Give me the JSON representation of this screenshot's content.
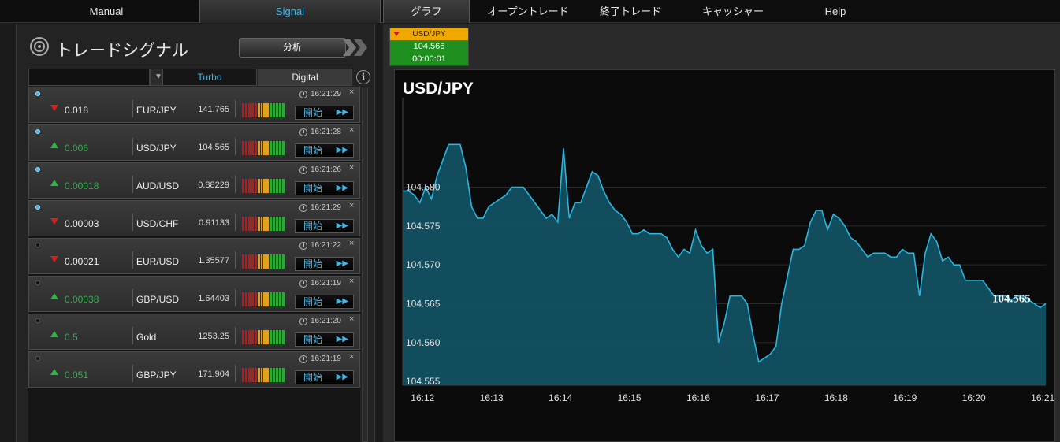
{
  "nav": {
    "tabs": [
      "Manual",
      "Signal",
      "グラフ",
      "オープントレード",
      "終了トレード",
      "キャッシャー",
      "Help"
    ],
    "active": "Signal"
  },
  "signals_panel": {
    "title": "トレードシグナル",
    "analyze_label": "分析",
    "filter": {
      "dropdown_value": "",
      "tabs": [
        "Turbo",
        "Digital"
      ],
      "active_tab": "Turbo"
    },
    "rows": [
      {
        "active": true,
        "direction": "down",
        "change": "0.018",
        "pair": "EUR/JPY",
        "price": "141.765",
        "time": "16:21:29",
        "button": "開始"
      },
      {
        "active": true,
        "direction": "up",
        "change": "0.006",
        "pair": "USD/JPY",
        "price": "104.565",
        "time": "16:21:28",
        "button": "開始"
      },
      {
        "active": true,
        "direction": "up",
        "change": "0.00018",
        "pair": "AUD/USD",
        "price": "0.88229",
        "time": "16:21:26",
        "button": "開始"
      },
      {
        "active": true,
        "direction": "down",
        "change": "0.00003",
        "pair": "USD/CHF",
        "price": "0.91133",
        "time": "16:21:29",
        "button": "開始"
      },
      {
        "active": false,
        "direction": "down",
        "change": "0.00021",
        "pair": "EUR/USD",
        "price": "1.35577",
        "time": "16:21:22",
        "button": "開始"
      },
      {
        "active": false,
        "direction": "up",
        "change": "0.00038",
        "pair": "GBP/USD",
        "price": "1.64403",
        "time": "16:21:19",
        "button": "開始"
      },
      {
        "active": false,
        "direction": "up",
        "change": "0.5",
        "pair": "Gold",
        "price": "1253.25",
        "time": "16:21:20",
        "button": "開始"
      },
      {
        "active": false,
        "direction": "up",
        "change": "0.051",
        "pair": "GBP/JPY",
        "price": "171.904",
        "time": "16:21:19",
        "button": "開始"
      }
    ],
    "meter_colors": [
      "#c01818",
      "#c01818",
      "#c01818",
      "#c01818",
      "#c01818",
      "#e0a020",
      "#e0a020",
      "#e0a020",
      "#e0a020",
      "#2fa83a",
      "#2fa83a",
      "#2fa83a",
      "#2fa83a",
      "#2fa83a"
    ]
  },
  "ticker": {
    "pair": "USD/JPY",
    "price": "104.566",
    "countdown": "00:00:01",
    "direction": "down"
  },
  "colors": {
    "accent": "#3fb6e6",
    "up": "#2fb24a",
    "down": "#d42020",
    "line": "#29b6e0",
    "area": "#135466"
  },
  "chart_data": {
    "type": "area",
    "title": "USD/JPY",
    "last_value": "104.565",
    "ylim": [
      104.5545,
      104.5905
    ],
    "yticks": [
      "104.555",
      "104.560",
      "104.565",
      "104.570",
      "104.575",
      "104.580"
    ],
    "xlim": [
      0,
      112
    ],
    "xticks": [
      {
        "t": 1,
        "label": "16:12"
      },
      {
        "t": 13,
        "label": "16:13"
      },
      {
        "t": 25,
        "label": "16:14"
      },
      {
        "t": 37,
        "label": "16:15"
      },
      {
        "t": 49,
        "label": "16:16"
      },
      {
        "t": 61,
        "label": "16:17"
      },
      {
        "t": 73,
        "label": "16:18"
      },
      {
        "t": 85,
        "label": "16:19"
      },
      {
        "t": 97,
        "label": "16:20"
      },
      {
        "t": 109,
        "label": "16:21"
      }
    ],
    "points": [
      [
        0,
        104.5795
      ],
      [
        1,
        104.5795
      ],
      [
        2,
        104.579
      ],
      [
        3,
        104.578
      ],
      [
        4,
        104.58
      ],
      [
        5,
        104.5785
      ],
      [
        6,
        104.5815
      ],
      [
        7,
        104.5835
      ],
      [
        8,
        104.5855
      ],
      [
        9,
        104.5855
      ],
      [
        10,
        104.5855
      ],
      [
        11,
        104.5825
      ],
      [
        12,
        104.5775
      ],
      [
        13,
        104.576
      ],
      [
        14,
        104.576
      ],
      [
        15,
        104.5775
      ],
      [
        16,
        104.578
      ],
      [
        17,
        104.5785
      ],
      [
        18,
        104.579
      ],
      [
        19,
        104.58
      ],
      [
        20,
        104.58
      ],
      [
        21,
        104.58
      ],
      [
        22,
        104.579
      ],
      [
        23,
        104.578
      ],
      [
        24,
        104.577
      ],
      [
        25,
        104.576
      ],
      [
        26,
        104.5765
      ],
      [
        27,
        104.5755
      ],
      [
        28,
        104.585
      ],
      [
        29,
        104.576
      ],
      [
        30,
        104.578
      ],
      [
        31,
        104.578
      ],
      [
        32,
        104.58
      ],
      [
        33,
        104.582
      ],
      [
        34,
        104.5815
      ],
      [
        35,
        104.5795
      ],
      [
        36,
        104.578
      ],
      [
        37,
        104.577
      ],
      [
        38,
        104.5765
      ],
      [
        39,
        104.5755
      ],
      [
        40,
        104.574
      ],
      [
        41,
        104.574
      ],
      [
        42,
        104.5745
      ],
      [
        43,
        104.574
      ],
      [
        44,
        104.574
      ],
      [
        45,
        104.574
      ],
      [
        46,
        104.5735
      ],
      [
        47,
        104.572
      ],
      [
        48,
        104.571
      ],
      [
        49,
        104.572
      ],
      [
        50,
        104.5715
      ],
      [
        51,
        104.5745
      ],
      [
        52,
        104.5725
      ],
      [
        53,
        104.5715
      ],
      [
        54,
        104.572
      ],
      [
        55,
        104.56
      ],
      [
        56,
        104.5625
      ],
      [
        57,
        104.566
      ],
      [
        58,
        104.566
      ],
      [
        59,
        104.566
      ],
      [
        60,
        104.565
      ],
      [
        61,
        104.561
      ],
      [
        62,
        104.5575
      ],
      [
        63,
        104.558
      ],
      [
        64,
        104.5585
      ],
      [
        65,
        104.5595
      ],
      [
        66,
        104.565
      ],
      [
        67,
        104.5685
      ],
      [
        68,
        104.572
      ],
      [
        69,
        104.572
      ],
      [
        70,
        104.5725
      ],
      [
        71,
        104.5755
      ],
      [
        72,
        104.577
      ],
      [
        73,
        104.577
      ],
      [
        74,
        104.5745
      ],
      [
        75,
        104.5765
      ],
      [
        76,
        104.576
      ],
      [
        77,
        104.575
      ],
      [
        78,
        104.5735
      ],
      [
        79,
        104.573
      ],
      [
        80,
        104.572
      ],
      [
        81,
        104.571
      ],
      [
        82,
        104.5715
      ],
      [
        83,
        104.5715
      ],
      [
        84,
        104.5715
      ],
      [
        85,
        104.571
      ],
      [
        86,
        104.571
      ],
      [
        87,
        104.572
      ],
      [
        88,
        104.5715
      ],
      [
        89,
        104.5715
      ],
      [
        90,
        104.566
      ],
      [
        91,
        104.5715
      ],
      [
        92,
        104.574
      ],
      [
        93,
        104.573
      ],
      [
        94,
        104.5705
      ],
      [
        95,
        104.571
      ],
      [
        96,
        104.57
      ],
      [
        97,
        104.57
      ],
      [
        98,
        104.568
      ],
      [
        99,
        104.568
      ],
      [
        100,
        104.568
      ],
      [
        101,
        104.568
      ],
      [
        102,
        104.567
      ],
      [
        103,
        104.566
      ],
      [
        104,
        104.566
      ],
      [
        105,
        104.566
      ],
      [
        106,
        104.5655
      ],
      [
        107,
        104.566
      ],
      [
        108,
        104.566
      ],
      [
        109,
        104.5655
      ],
      [
        110,
        104.565
      ],
      [
        111,
        104.5645
      ],
      [
        112,
        104.565
      ]
    ]
  }
}
